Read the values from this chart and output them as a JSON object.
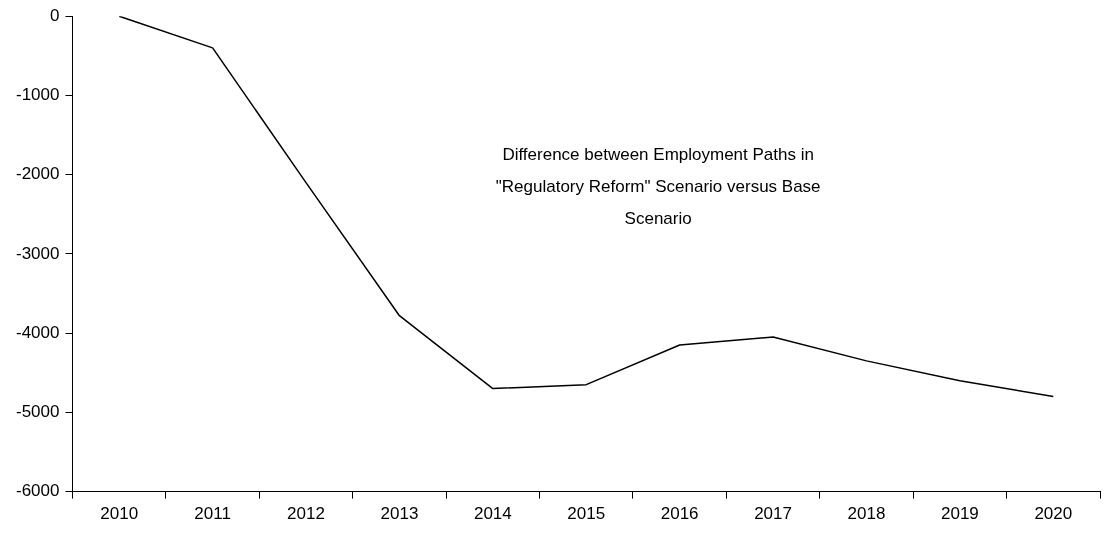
{
  "chart_data": {
    "type": "line",
    "categories": [
      "2010",
      "2011",
      "2012",
      "2013",
      "2014",
      "2015",
      "2016",
      "2017",
      "2018",
      "2019",
      "2020"
    ],
    "series": [
      {
        "color": "#000000",
        "values": [
          0,
          -400,
          -2100,
          -3780,
          -4700,
          -4650,
          -4150,
          -4050,
          -4350,
          -4600,
          -4800
        ]
      }
    ],
    "ylim": [
      -6000,
      0
    ],
    "yticks": [
      -6000,
      -5000,
      -4000,
      -3000,
      -2000,
      -1000,
      0
    ],
    "grid": false,
    "legend": false,
    "marker": "none",
    "line_style": "solid",
    "annotations": [
      "Difference between Employment Paths in \"Regulatory Reform\" Scenario versus Base Scenario"
    ]
  }
}
